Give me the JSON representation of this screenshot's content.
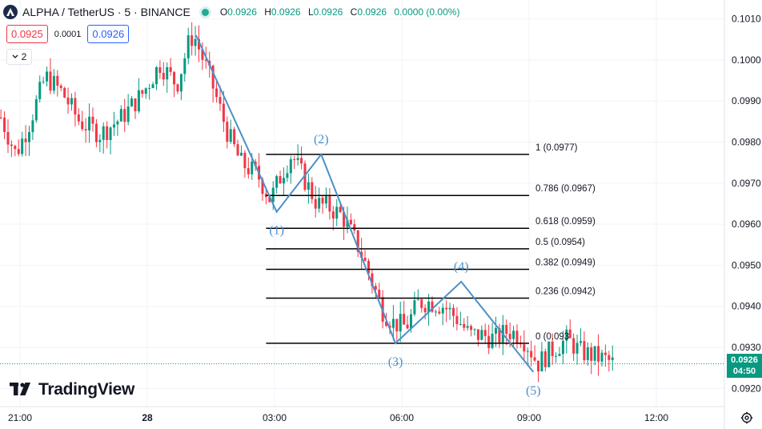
{
  "header": {
    "symbol_title": "ALPHA / TetherUS · 5 · BINANCE",
    "o_label": "O",
    "o_value": "0.0926",
    "h_label": "H",
    "h_value": "0.0926",
    "l_label": "L",
    "l_value": "0.0926",
    "c_label": "C",
    "c_value": "0.0926",
    "change": "0.0000 (0.00%)",
    "status_color": "#22ab94"
  },
  "trade": {
    "sell": "0.0925",
    "spread": "0.0001",
    "buy": "0.0926"
  },
  "indicators": {
    "count": "2"
  },
  "brand": {
    "name": "TradingView"
  },
  "colors": {
    "up": "#089981",
    "down": "#f23645",
    "wave": "#4a90c8",
    "fib": "#000000"
  },
  "price_tag": {
    "price": "0.0926",
    "countdown": "04:50"
  },
  "chart_data": {
    "type": "candlestick",
    "symbol": "ALPHA / TetherUS",
    "interval": "5",
    "exchange": "BINANCE",
    "ylim": [
      0.0916,
      0.1012
    ],
    "y_ticks": [
      "0.1010",
      "0.1000",
      "0.0990",
      "0.0980",
      "0.0970",
      "0.0960",
      "0.0950",
      "0.0940",
      "0.0930",
      "0.0920"
    ],
    "x_ticks": [
      {
        "label": "21:00",
        "hours": 21
      },
      {
        "label": "28",
        "hours": 24
      },
      {
        "label": "03:00",
        "hours": 27
      },
      {
        "label": "06:00",
        "hours": 30
      },
      {
        "label": "09:00",
        "hours": 33
      },
      {
        "label": "12:00",
        "hours": 36
      }
    ],
    "price_path": [
      [
        20.55,
        0.0986
      ],
      [
        20.9,
        0.0977
      ],
      [
        21.2,
        0.0984
      ],
      [
        21.6,
        0.0996
      ],
      [
        22.0,
        0.0992
      ],
      [
        22.4,
        0.0985
      ],
      [
        22.9,
        0.0982
      ],
      [
        23.4,
        0.0986
      ],
      [
        23.9,
        0.0992
      ],
      [
        24.3,
        0.0999
      ],
      [
        24.7,
        0.0994
      ],
      [
        25.0,
        0.1005
      ],
      [
        25.1,
        0.1006
      ],
      [
        25.5,
        0.0995
      ],
      [
        25.9,
        0.0982
      ],
      [
        26.2,
        0.0975
      ],
      [
        26.6,
        0.0972
      ],
      [
        26.9,
        0.0966
      ],
      [
        27.2,
        0.0973
      ],
      [
        27.4,
        0.0977
      ],
      [
        27.7,
        0.0971
      ],
      [
        28.0,
        0.0965
      ],
      [
        28.3,
        0.0964
      ],
      [
        28.6,
        0.0962
      ],
      [
        29.0,
        0.0954
      ],
      [
        29.3,
        0.0946
      ],
      [
        29.55,
        0.0939
      ],
      [
        29.8,
        0.0936
      ],
      [
        30.1,
        0.0935
      ],
      [
        30.4,
        0.0941
      ],
      [
        30.7,
        0.0941
      ],
      [
        31.0,
        0.094
      ],
      [
        31.3,
        0.0937
      ],
      [
        31.6,
        0.0933
      ],
      [
        31.9,
        0.0933
      ],
      [
        32.2,
        0.0932
      ],
      [
        32.5,
        0.0934
      ],
      [
        32.8,
        0.0933
      ],
      [
        33.0,
        0.093
      ],
      [
        33.2,
        0.0926
      ],
      [
        33.5,
        0.0929
      ],
      [
        33.9,
        0.0932
      ],
      [
        34.2,
        0.0929
      ],
      [
        34.5,
        0.0928
      ],
      [
        34.8,
        0.0927
      ],
      [
        35.0,
        0.0926
      ]
    ],
    "fib_levels": [
      {
        "ratio": "1",
        "price": 0.0977,
        "label": "1 (0.0977)"
      },
      {
        "ratio": "0.786",
        "price": 0.0967,
        "label": "0.786 (0.0967)"
      },
      {
        "ratio": "0.618",
        "price": 0.0959,
        "label": "0.618 (0.0959)"
      },
      {
        "ratio": "0.5",
        "price": 0.0954,
        "label": "0.5 (0.0954)"
      },
      {
        "ratio": "0.382",
        "price": 0.0949,
        "label": "0.382 (0.0949)"
      },
      {
        "ratio": "0.236",
        "price": 0.0942,
        "label": "0.236 (0.0942)"
      },
      {
        "ratio": "0",
        "price": 0.0931,
        "label": "0 (0.093"
      }
    ],
    "fib_x_range_hours": [
      26.8,
      33.0
    ],
    "waves": [
      {
        "label": "",
        "hours": 25.15,
        "price": 0.1006
      },
      {
        "label": "(1)",
        "hours": 27.05,
        "price": 0.0963
      },
      {
        "label": "(2)",
        "hours": 28.1,
        "price": 0.0977
      },
      {
        "label": "(3)",
        "hours": 29.85,
        "price": 0.0931
      },
      {
        "label": "(4)",
        "hours": 31.4,
        "price": 0.0946
      },
      {
        "label": "(5)",
        "hours": 33.1,
        "price": 0.0924
      }
    ],
    "last_price": 0.0926
  }
}
